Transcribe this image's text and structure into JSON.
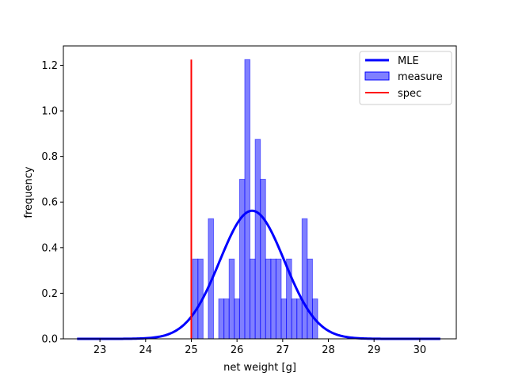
{
  "chart_data": {
    "type": "bar",
    "title": "",
    "xlabel": "net weight [g]",
    "ylabel": "frequency",
    "xlim": [
      22.2,
      30.8
    ],
    "ylim": [
      0,
      1.285
    ],
    "xticks": [
      23,
      24,
      25,
      26,
      27,
      28,
      29,
      30
    ],
    "yticks": [
      0.0,
      0.2,
      0.4,
      0.6,
      0.8,
      1.0,
      1.2
    ],
    "ytick_labels": [
      "0.0",
      "0.2",
      "0.4",
      "0.6",
      "0.8",
      "1.0",
      "1.2"
    ],
    "grid": false,
    "legend": {
      "position": "top-right",
      "entries": [
        {
          "label": "MLE",
          "kind": "line",
          "color": "#0000ff"
        },
        {
          "label": "measure",
          "kind": "patch",
          "color": "#0000ff"
        },
        {
          "label": "spec",
          "kind": "line",
          "color": "#ff0000"
        }
      ]
    },
    "series": [
      {
        "name": "measure",
        "kind": "histogram",
        "color": "#0000ff",
        "bin_width": 0.114,
        "bin_starts": [
          25.03,
          25.144,
          25.258,
          25.372,
          25.486,
          25.6,
          25.714,
          25.828,
          25.942,
          26.056,
          26.17,
          26.284,
          26.398,
          26.512,
          26.626,
          26.74,
          26.854,
          26.968,
          27.082,
          27.196,
          27.31,
          27.424,
          27.538,
          27.652
        ],
        "values": [
          0.35,
          0.35,
          0.0,
          0.527,
          0.0,
          0.175,
          0.175,
          0.35,
          0.175,
          0.7,
          1.225,
          0.35,
          0.875,
          0.7,
          0.35,
          0.35,
          0.35,
          0.175,
          0.35,
          0.175,
          0.175,
          0.527,
          0.35,
          0.175
        ]
      },
      {
        "name": "MLE",
        "kind": "normal-pdf",
        "color": "#0000ff",
        "mean": 26.33,
        "std": 0.71,
        "x_range": [
          22.5,
          30.45
        ]
      },
      {
        "name": "spec",
        "kind": "vline",
        "color": "#ff0000",
        "x": 25.0,
        "y_range": [
          0,
          1.225
        ]
      }
    ]
  }
}
